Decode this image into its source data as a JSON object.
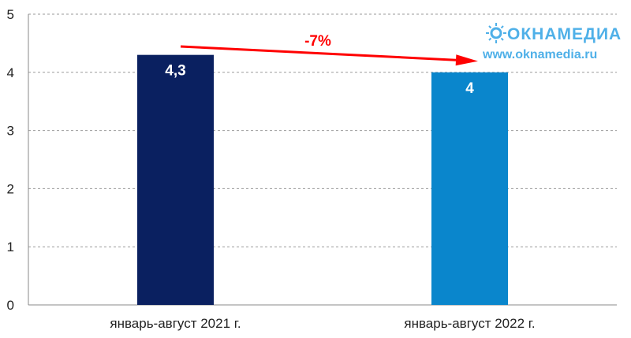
{
  "chart_data": {
    "type": "bar",
    "categories": [
      "январь-август 2021 г.",
      "январь-август 2022 г."
    ],
    "values": [
      4.3,
      4
    ],
    "value_labels": [
      "4,3",
      "4"
    ],
    "colors": [
      "#0a2060",
      "#0a86cc"
    ],
    "title": "",
    "xlabel": "",
    "ylabel": "",
    "ylim": [
      0,
      5
    ],
    "yticks": [
      0,
      1,
      2,
      3,
      4,
      5
    ],
    "grid": true,
    "annotation": {
      "text": "-7%",
      "color": "#ff0000",
      "from": 4.3,
      "to": 4
    }
  },
  "watermark": {
    "brand": "ОКНАМЕДИА",
    "url": "www.oknamedia.ru",
    "color": "#4fb0e8"
  }
}
